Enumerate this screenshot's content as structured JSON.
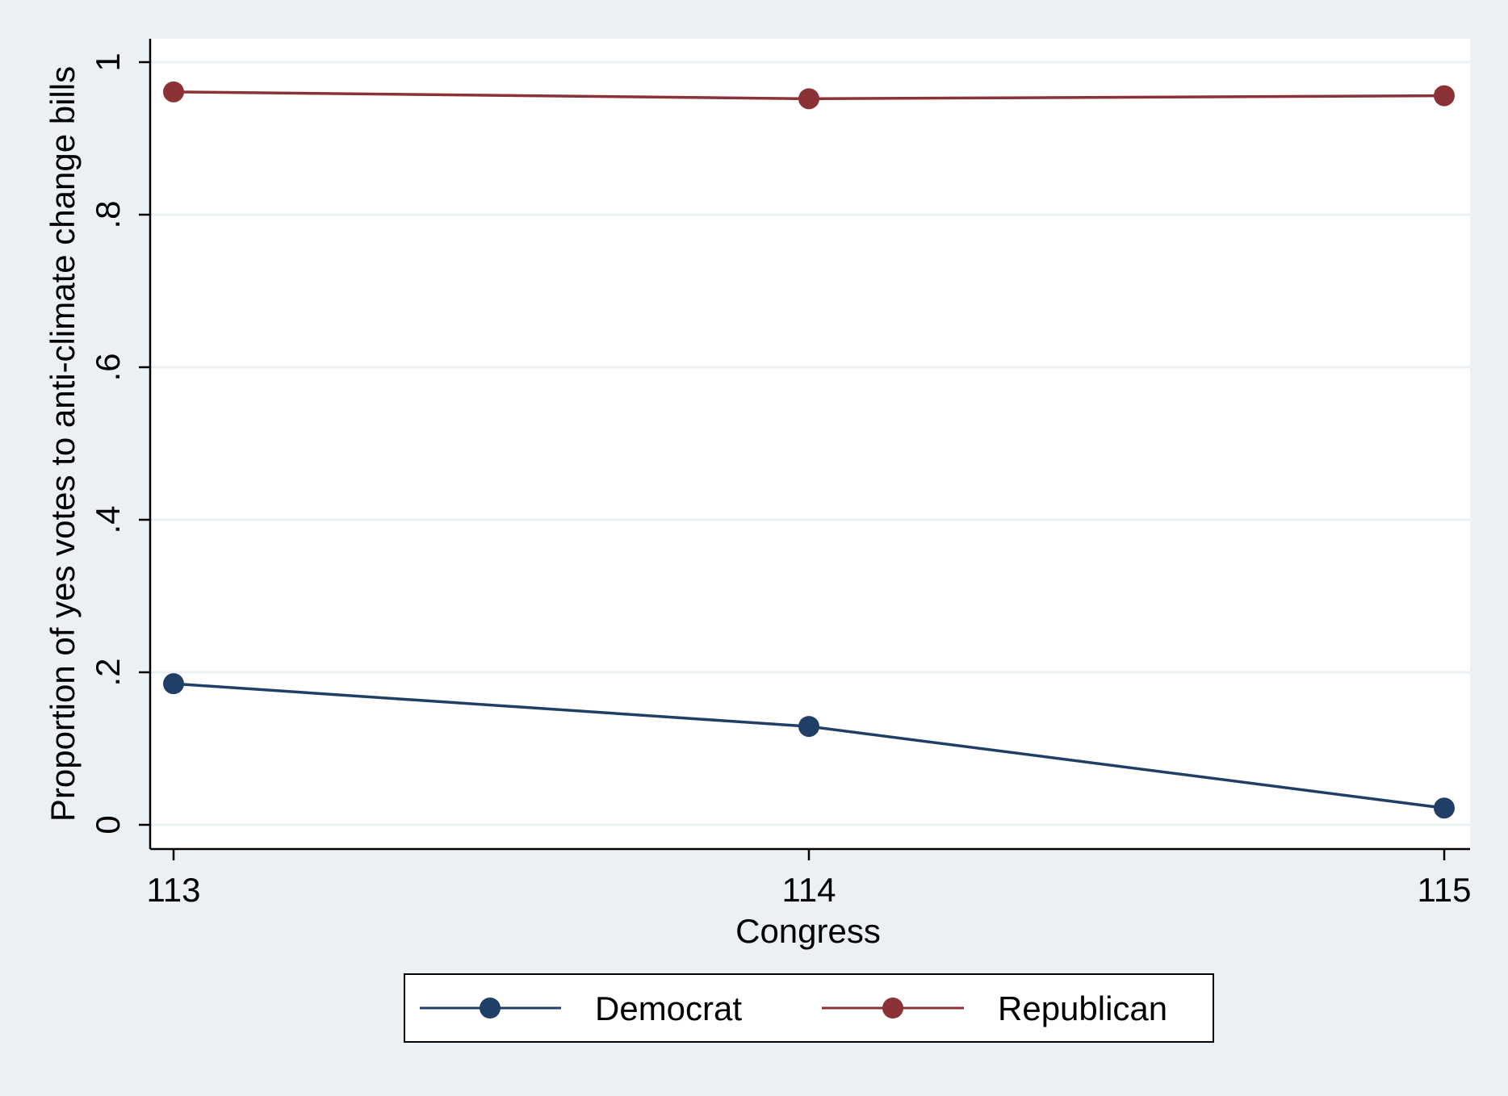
{
  "chart_data": {
    "type": "line",
    "title": "",
    "xlabel": "Congress",
    "ylabel": "Proportion of yes votes to anti-climate change bills",
    "x": [
      113,
      114,
      115
    ],
    "x_tick_labels": [
      "113",
      "114",
      "115"
    ],
    "y_ticks": [
      0,
      0.2,
      0.4,
      0.6,
      0.8,
      1
    ],
    "y_tick_labels": [
      "0",
      ".2",
      ".4",
      ".6",
      ".8",
      "1"
    ],
    "ylim": [
      0,
      1
    ],
    "grid": true,
    "legend_position": "bottom",
    "series": [
      {
        "name": "Democrat",
        "color": "#1f3f66",
        "values": [
          0.185,
          0.129,
          0.022
        ]
      },
      {
        "name": "Republican",
        "color": "#8b3236",
        "values": [
          0.961,
          0.952,
          0.956
        ]
      }
    ]
  },
  "colors": {
    "background": "#eaf0f3",
    "plot_background": "#ffffff",
    "gridline": "#eaf0f3"
  }
}
